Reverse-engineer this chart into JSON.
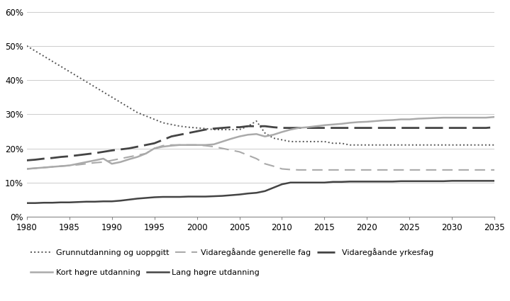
{
  "series": {
    "Grunnutdanning og uoppgitt": {
      "x": [
        1980,
        1981,
        1982,
        1983,
        1984,
        1985,
        1986,
        1987,
        1988,
        1989,
        1990,
        1991,
        1992,
        1993,
        1994,
        1995,
        1996,
        1997,
        1998,
        1999,
        2000,
        2001,
        2002,
        2003,
        2004,
        2005,
        2006,
        2007,
        2008,
        2009,
        2010,
        2011,
        2012,
        2013,
        2014,
        2015,
        2016,
        2017,
        2018,
        2019,
        2020,
        2021,
        2022,
        2023,
        2024,
        2025,
        2026,
        2027,
        2028,
        2029,
        2030,
        2031,
        2032,
        2033,
        2034,
        2035
      ],
      "y": [
        50.0,
        48.5,
        47.0,
        45.5,
        44.0,
        42.5,
        41.0,
        39.5,
        38.0,
        36.5,
        35.0,
        33.5,
        32.0,
        30.5,
        29.5,
        28.5,
        27.5,
        27.0,
        26.5,
        26.2,
        26.0,
        25.8,
        25.5,
        25.5,
        25.5,
        25.5,
        26.5,
        28.0,
        24.5,
        23.0,
        22.5,
        22.0,
        22.0,
        22.0,
        22.0,
        22.0,
        21.5,
        21.5,
        21.0,
        21.0,
        21.0,
        21.0,
        21.0,
        21.0,
        21.0,
        21.0,
        21.0,
        21.0,
        21.0,
        21.0,
        21.0,
        21.0,
        21.0,
        21.0,
        21.0,
        21.0
      ],
      "linestyle": "dotted",
      "color": "#555555",
      "linewidth": 1.4
    },
    "Vidaregåande generelle fag": {
      "x": [
        1980,
        1981,
        1982,
        1983,
        1984,
        1985,
        1986,
        1987,
        1988,
        1989,
        1990,
        1991,
        1992,
        1993,
        1994,
        1995,
        1996,
        1997,
        1998,
        1999,
        2000,
        2001,
        2002,
        2003,
        2004,
        2005,
        2006,
        2007,
        2008,
        2009,
        2010,
        2011,
        2012,
        2013,
        2014,
        2015,
        2016,
        2017,
        2018,
        2019,
        2020,
        2021,
        2022,
        2023,
        2024,
        2025,
        2026,
        2027,
        2028,
        2029,
        2030,
        2031,
        2032,
        2033,
        2034,
        2035
      ],
      "y": [
        14.0,
        14.2,
        14.4,
        14.6,
        14.8,
        15.0,
        15.2,
        15.5,
        15.8,
        16.0,
        16.5,
        17.0,
        17.5,
        18.0,
        18.5,
        20.0,
        20.8,
        21.0,
        21.0,
        21.0,
        21.0,
        20.8,
        20.5,
        20.0,
        19.5,
        19.0,
        18.0,
        17.0,
        15.5,
        14.8,
        14.0,
        13.8,
        13.7,
        13.7,
        13.7,
        13.7,
        13.7,
        13.7,
        13.7,
        13.7,
        13.7,
        13.7,
        13.7,
        13.7,
        13.7,
        13.7,
        13.7,
        13.7,
        13.7,
        13.7,
        13.7,
        13.7,
        13.7,
        13.7,
        13.7,
        13.7
      ],
      "linestyle": "dashed",
      "color": "#aaaaaa",
      "linewidth": 1.5,
      "dashes": [
        7,
        4
      ]
    },
    "Vidaregåande yrkesfag": {
      "x": [
        1980,
        1981,
        1982,
        1983,
        1984,
        1985,
        1986,
        1987,
        1988,
        1989,
        1990,
        1991,
        1992,
        1993,
        1994,
        1995,
        1996,
        1997,
        1998,
        1999,
        2000,
        2001,
        2002,
        2003,
        2004,
        2005,
        2006,
        2007,
        2008,
        2009,
        2010,
        2011,
        2012,
        2013,
        2014,
        2015,
        2016,
        2017,
        2018,
        2019,
        2020,
        2021,
        2022,
        2023,
        2024,
        2025,
        2026,
        2027,
        2028,
        2029,
        2030,
        2031,
        2032,
        2033,
        2034,
        2035
      ],
      "y": [
        16.5,
        16.7,
        17.0,
        17.2,
        17.5,
        17.7,
        18.0,
        18.3,
        18.6,
        19.0,
        19.4,
        19.7,
        20.0,
        20.5,
        21.0,
        21.5,
        22.5,
        23.5,
        24.0,
        24.5,
        25.0,
        25.5,
        25.8,
        26.0,
        26.2,
        26.2,
        26.5,
        26.5,
        26.5,
        26.2,
        26.0,
        26.0,
        26.0,
        26.0,
        26.0,
        26.0,
        26.0,
        26.0,
        26.0,
        26.0,
        26.0,
        26.0,
        26.0,
        26.0,
        26.0,
        26.0,
        26.0,
        26.0,
        26.0,
        26.0,
        26.0,
        26.0,
        26.0,
        26.0,
        26.0,
        26.2
      ],
      "linestyle": "dashed",
      "color": "#444444",
      "linewidth": 2.0,
      "dashes": [
        9,
        3
      ]
    },
    "Kort høgre utdanning": {
      "x": [
        1980,
        1981,
        1982,
        1983,
        1984,
        1985,
        1986,
        1987,
        1988,
        1989,
        1990,
        1991,
        1992,
        1993,
        1994,
        1995,
        1996,
        1997,
        1998,
        1999,
        2000,
        2001,
        2002,
        2003,
        2004,
        2005,
        2006,
        2007,
        2008,
        2009,
        2010,
        2011,
        2012,
        2013,
        2014,
        2015,
        2016,
        2017,
        2018,
        2019,
        2020,
        2021,
        2022,
        2023,
        2024,
        2025,
        2026,
        2027,
        2028,
        2029,
        2030,
        2031,
        2032,
        2033,
        2034,
        2035
      ],
      "y": [
        14.0,
        14.2,
        14.4,
        14.6,
        14.8,
        15.0,
        15.5,
        16.0,
        16.5,
        17.0,
        15.5,
        16.0,
        16.8,
        17.5,
        18.5,
        20.0,
        20.5,
        20.8,
        21.0,
        21.0,
        21.0,
        21.0,
        21.2,
        22.0,
        22.8,
        23.5,
        24.0,
        24.2,
        23.5,
        24.0,
        24.8,
        25.5,
        26.0,
        26.2,
        26.5,
        26.8,
        27.0,
        27.2,
        27.5,
        27.7,
        27.8,
        28.0,
        28.2,
        28.3,
        28.5,
        28.5,
        28.7,
        28.8,
        28.9,
        29.0,
        29.0,
        29.0,
        29.0,
        29.0,
        29.0,
        29.2
      ],
      "linestyle": "solid",
      "color": "#aaaaaa",
      "linewidth": 1.8
    },
    "Lang høgre utdanning": {
      "x": [
        1980,
        1981,
        1982,
        1983,
        1984,
        1985,
        1986,
        1987,
        1988,
        1989,
        1990,
        1991,
        1992,
        1993,
        1994,
        1995,
        1996,
        1997,
        1998,
        1999,
        2000,
        2001,
        2002,
        2003,
        2004,
        2005,
        2006,
        2007,
        2008,
        2009,
        2010,
        2011,
        2012,
        2013,
        2014,
        2015,
        2016,
        2017,
        2018,
        2019,
        2020,
        2021,
        2022,
        2023,
        2024,
        2025,
        2026,
        2027,
        2028,
        2029,
        2030,
        2031,
        2032,
        2033,
        2034,
        2035
      ],
      "y": [
        4.0,
        4.0,
        4.1,
        4.1,
        4.2,
        4.2,
        4.3,
        4.4,
        4.4,
        4.5,
        4.5,
        4.7,
        5.0,
        5.3,
        5.5,
        5.7,
        5.8,
        5.8,
        5.8,
        5.9,
        5.9,
        5.9,
        6.0,
        6.1,
        6.3,
        6.5,
        6.8,
        7.0,
        7.5,
        8.5,
        9.5,
        10.0,
        10.0,
        10.0,
        10.0,
        10.0,
        10.2,
        10.2,
        10.3,
        10.3,
        10.3,
        10.3,
        10.3,
        10.3,
        10.4,
        10.4,
        10.4,
        10.4,
        10.4,
        10.4,
        10.5,
        10.5,
        10.5,
        10.5,
        10.5,
        10.5
      ],
      "linestyle": "solid",
      "color": "#444444",
      "linewidth": 1.8
    }
  },
  "xlim": [
    1980,
    2035
  ],
  "ylim": [
    0,
    62
  ],
  "yticks": [
    0,
    10,
    20,
    30,
    40,
    50,
    60
  ],
  "ytick_labels": [
    "0%",
    "10%",
    "20%",
    "30%",
    "40%",
    "50%",
    "60%"
  ],
  "xticks": [
    1980,
    1985,
    1990,
    1995,
    2000,
    2005,
    2010,
    2015,
    2020,
    2025,
    2030,
    2035
  ],
  "legend_order": [
    "Grunnutdanning og uoppgitt",
    "Vidaregåande generelle fag",
    "Vidaregåande yrkesfag",
    "Kort høgre utdanning",
    "Lang høgre utdanning"
  ],
  "background_color": "#ffffff",
  "grid_color": "#cccccc",
  "spine_color": "#888888"
}
